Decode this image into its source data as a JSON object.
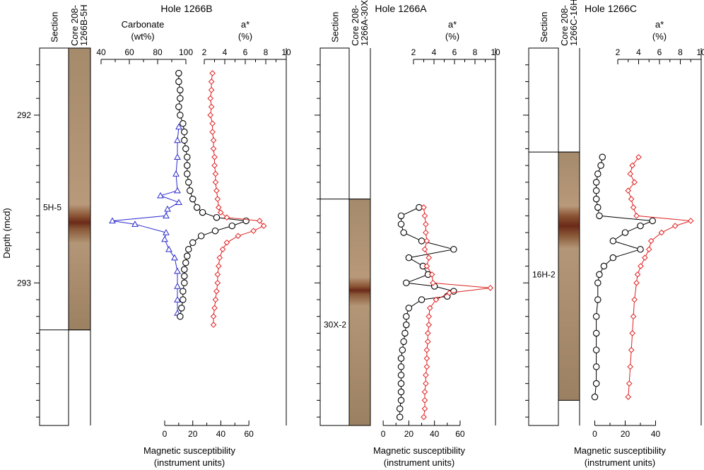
{
  "colors": {
    "axis": "#000000",
    "magsus": "#000000",
    "astar": "#e02020",
    "carbonate": "#2a2acc",
    "core_base": "#b09070",
    "core_dark": "#6b2a18"
  },
  "y_axis": {
    "label": "Depth (mcd)",
    "min": 291.6,
    "max": 293.85,
    "ticks": [
      292,
      293
    ]
  },
  "chart_data": [
    {
      "type": "line",
      "title": "Hole 1266B",
      "section_header": "Section",
      "core_header_1": "Core 208-",
      "core_header_2": "1266B-5H",
      "section_label": "5H-5",
      "section_label_depth": 292.55,
      "section_boundary_depth": 293.28,
      "core_top_depth": 291.6,
      "core_bottom_depth": 293.28,
      "core_dark_band": [
        292.6,
        292.68
      ],
      "x_axes": [
        {
          "id": "carbonate",
          "label_1": "Carbonate",
          "label_2": "(wt%)",
          "min": 40,
          "max": 100,
          "ticks": [
            40,
            60,
            80,
            100
          ],
          "position": "top"
        },
        {
          "id": "astar",
          "label_1": "a*",
          "label_2": "(%)",
          "min": 2,
          "max": 10,
          "ticks": [
            2,
            4,
            6,
            8,
            10
          ],
          "position": "top"
        },
        {
          "id": "magsus",
          "label_1": "Magnetic susceptibility",
          "label_2": "(instrument units)",
          "min": 0,
          "max": 70,
          "ticks": [
            0,
            20,
            40,
            60
          ],
          "position": "bottom"
        }
      ],
      "series": [
        {
          "axis": "carbonate",
          "marker": "triangle",
          "depth": [
            292.07,
            292.15,
            292.25,
            292.35,
            292.45,
            292.48,
            292.52,
            292.56,
            292.6,
            292.63,
            292.65,
            292.7,
            292.74,
            292.8,
            292.85,
            292.93,
            293.02,
            293.1,
            293.18
          ],
          "values": [
            95,
            94,
            94,
            93,
            94,
            82,
            95,
            87,
            86,
            48,
            64,
            86,
            85,
            88,
            92,
            94,
            94,
            94,
            94
          ]
        },
        {
          "axis": "magsus",
          "marker": "circle",
          "depth": [
            291.75,
            291.8,
            291.85,
            291.9,
            291.95,
            292.0,
            292.05,
            292.1,
            292.15,
            292.2,
            292.25,
            292.3,
            292.35,
            292.4,
            292.45,
            292.5,
            292.55,
            292.58,
            292.61,
            292.63,
            292.66,
            292.69,
            292.72,
            292.76,
            292.8,
            292.84,
            292.88,
            292.92,
            292.96,
            293.0,
            293.05,
            293.1,
            293.15,
            293.2
          ],
          "values": [
            10,
            10,
            11,
            11,
            10,
            11,
            13,
            14,
            14,
            15,
            16,
            16,
            16,
            17,
            18,
            20,
            23,
            27,
            37,
            58,
            48,
            36,
            26,
            20,
            17,
            16,
            15,
            14,
            14,
            14,
            13,
            13,
            12,
            11
          ]
        },
        {
          "axis": "astar",
          "marker": "diamond",
          "depth": [
            291.75,
            291.8,
            291.85,
            291.9,
            291.95,
            292.0,
            292.05,
            292.1,
            292.15,
            292.2,
            292.25,
            292.3,
            292.35,
            292.4,
            292.45,
            292.5,
            292.55,
            292.58,
            292.61,
            292.63,
            292.66,
            292.69,
            292.72,
            292.76,
            292.8,
            292.85,
            292.9,
            292.95,
            293.0,
            293.05,
            293.1,
            293.15,
            293.2,
            293.25
          ],
          "values": [
            2.8,
            2.7,
            2.7,
            2.6,
            2.7,
            2.6,
            2.8,
            2.8,
            2.9,
            2.9,
            3.0,
            3.0,
            3.1,
            3.1,
            3.2,
            3.3,
            3.4,
            3.6,
            4.2,
            7.4,
            7.8,
            6.8,
            5.3,
            4.2,
            3.8,
            3.5,
            3.4,
            3.3,
            3.3,
            3.2,
            3.1,
            3.0,
            2.9,
            2.9
          ]
        }
      ]
    },
    {
      "type": "line",
      "title": "Hole 1266A",
      "section_header": "Section",
      "core_header_1": "Core 208-",
      "core_header_2": "1266A-30X",
      "section_label": "30X-2",
      "section_label_depth": 293.25,
      "section_boundary_depth": 292.5,
      "core_top_depth": 292.5,
      "core_bottom_depth": 293.85,
      "core_dark_band": [
        293.02,
        293.07
      ],
      "x_axes": [
        {
          "id": "astar",
          "label_1": "a*",
          "label_2": "(%)",
          "min": 2,
          "max": 10,
          "ticks": [
            2,
            4,
            6,
            8,
            10
          ],
          "position": "top"
        },
        {
          "id": "magsus",
          "label_1": "Magnetic susceptibility",
          "label_2": "(instrument units)",
          "min": -10,
          "max": 65,
          "ticks": [
            0,
            20,
            40,
            60
          ],
          "position": "bottom"
        }
      ],
      "series": [
        {
          "axis": "magsus",
          "marker": "circle",
          "depth": [
            292.55,
            292.6,
            292.65,
            292.7,
            292.75,
            292.8,
            292.85,
            292.9,
            292.95,
            293.0,
            293.02,
            293.05,
            293.08,
            293.1,
            293.15,
            293.2,
            293.25,
            293.3,
            293.35,
            293.4,
            293.45,
            293.5,
            293.55,
            293.6,
            293.65,
            293.7,
            293.75,
            293.8
          ],
          "values": [
            28,
            14,
            14,
            16,
            30,
            55,
            20,
            31,
            35,
            18,
            40,
            55,
            50,
            30,
            20,
            18,
            18,
            17,
            16,
            15,
            14,
            14,
            14,
            14,
            14,
            14,
            13,
            13
          ]
        },
        {
          "axis": "astar",
          "marker": "diamond",
          "depth": [
            292.55,
            292.6,
            292.65,
            292.7,
            292.75,
            292.8,
            292.85,
            292.9,
            292.95,
            293.0,
            293.03,
            293.06,
            293.1,
            293.15,
            293.2,
            293.25,
            293.3,
            293.35,
            293.4,
            293.45,
            293.5,
            293.55,
            293.6,
            293.65,
            293.7,
            293.75,
            293.8
          ],
          "values": [
            3.0,
            3.1,
            3.2,
            3.2,
            3.3,
            3.1,
            3.5,
            3.3,
            3.8,
            3.9,
            9.5,
            5.5,
            4.2,
            3.6,
            3.5,
            3.5,
            3.4,
            3.4,
            3.3,
            3.3,
            3.3,
            3.2,
            3.2,
            3.1,
            3.1,
            3.1,
            3.0
          ]
        }
      ]
    },
    {
      "type": "line",
      "title": "Hole 1266C",
      "section_header": "Section",
      "core_header_1": "Core 208-",
      "core_header_2": "1266C-16H",
      "section_label": "16H-2",
      "section_label_depth": 292.95,
      "section_boundary_depth": 292.22,
      "core_top_depth": 292.22,
      "core_bottom_depth": 293.7,
      "core_dark_band": [
        292.6,
        292.72
      ],
      "x_axes": [
        {
          "id": "astar",
          "label_1": "a*",
          "label_2": "(%)",
          "min": 2,
          "max": 10,
          "ticks": [
            2,
            4,
            6,
            8,
            10
          ],
          "position": "top"
        },
        {
          "id": "magsus",
          "label_1": "Magnetic susceptibility",
          "label_2": "(instrument units)",
          "min": -10,
          "max": 70,
          "ticks": [
            0,
            20,
            40
          ],
          "position": "bottom"
        }
      ],
      "series": [
        {
          "axis": "magsus",
          "marker": "circle",
          "depth": [
            292.25,
            292.3,
            292.35,
            292.4,
            292.45,
            292.5,
            292.55,
            292.6,
            292.63,
            292.66,
            292.7,
            292.75,
            292.8,
            292.85,
            292.9,
            292.95,
            293.0,
            293.1,
            293.2,
            293.3,
            293.4,
            293.5,
            293.6,
            293.68
          ],
          "values": [
            5,
            4,
            2,
            1,
            1,
            1,
            2,
            3,
            38,
            30,
            20,
            12,
            30,
            12,
            6,
            3,
            2,
            2,
            1,
            1,
            1,
            1,
            1,
            0
          ]
        },
        {
          "axis": "astar",
          "marker": "diamond",
          "depth": [
            292.25,
            292.3,
            292.35,
            292.4,
            292.45,
            292.5,
            292.55,
            292.6,
            292.63,
            292.66,
            292.7,
            292.75,
            292.8,
            292.85,
            292.9,
            292.95,
            293.0,
            293.1,
            293.2,
            293.3,
            293.4,
            293.5,
            293.6,
            293.68
          ],
          "values": [
            4.0,
            3.4,
            3.2,
            3.6,
            3.0,
            3.3,
            3.5,
            3.8,
            9.0,
            7.5,
            6.2,
            5.2,
            5.0,
            4.6,
            4.2,
            3.9,
            3.8,
            3.6,
            3.5,
            3.4,
            3.3,
            3.2,
            3.1,
            3.0
          ]
        }
      ]
    }
  ]
}
